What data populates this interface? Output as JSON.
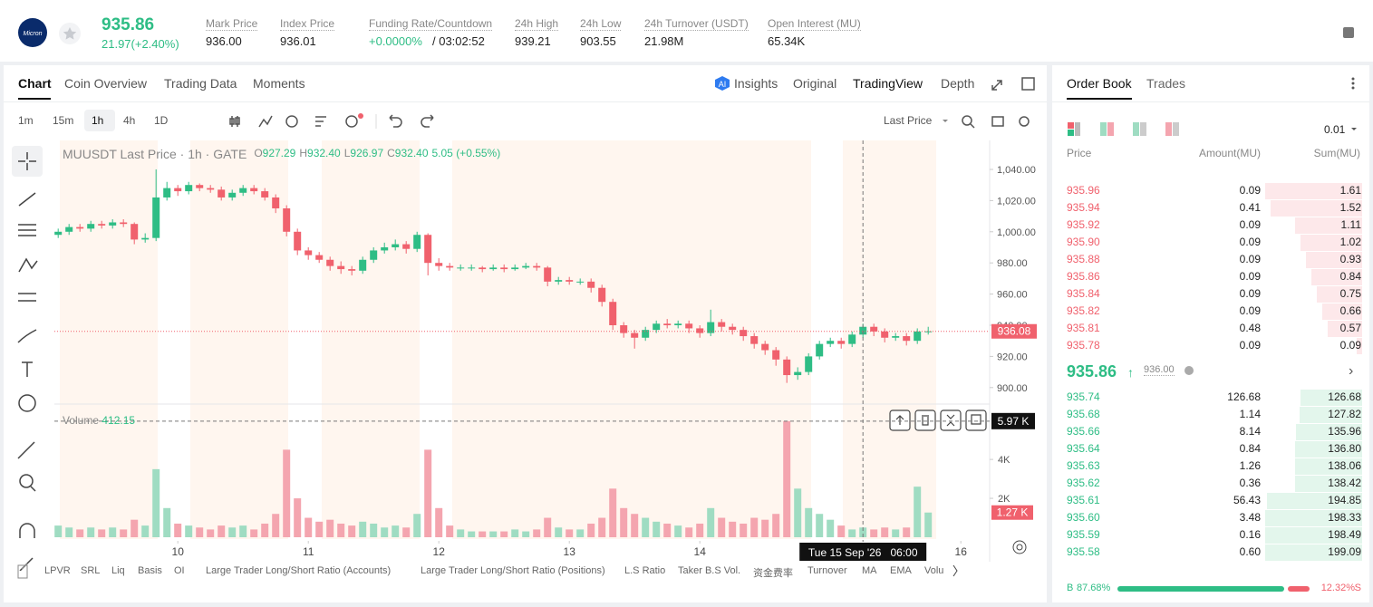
{
  "header": {
    "logo": "Micron",
    "price": "935.86",
    "change": "21.97(+2.40%)",
    "stats": [
      {
        "label": "Mark Price",
        "value": "936.00"
      },
      {
        "label": "Index Price",
        "value": "936.01"
      },
      {
        "label": "Funding Rate/Countdown",
        "value": "+0.0000%",
        "extra": "/ 03:02:52"
      },
      {
        "label": "24h High",
        "value": "939.21"
      },
      {
        "label": "24h Low",
        "value": "903.55"
      },
      {
        "label": "24h Turnover (USDT)",
        "value": "21.98M"
      },
      {
        "label": "Open Interest (MU)",
        "value": "65.34K"
      }
    ]
  },
  "chart_tabs": [
    "Chart",
    "Coin Overview",
    "Trading Data",
    "Moments"
  ],
  "view_tabs": [
    "Insights",
    "Original",
    "TradingView",
    "Depth"
  ],
  "intervals": [
    "1m",
    "15m",
    "1h",
    "4h",
    "1D"
  ],
  "price_type": "Last Price",
  "indicators": [
    "LPVR",
    "SRL",
    "Liq",
    "Basis",
    "OI",
    "Large Trader Long/Short Ratio (Accounts)",
    "Large Trader Long/Short Ratio (Positions)",
    "L.S Ratio",
    "Taker B.S Vol.",
    "资金费率",
    "Turnover",
    "MA",
    "EMA",
    "Volu"
  ],
  "chart_data": {
    "type": "candlestick",
    "title": "MUUSDT Last Price · 1h · GATE",
    "ohlc_legend": [
      {
        "key": "O",
        "value": "927.29"
      },
      {
        "key": "H",
        "value": "932.40"
      },
      {
        "key": "L",
        "value": "926.97"
      },
      {
        "key": "C",
        "value": "932.40"
      }
    ],
    "legend_change": "5.05 (+0.55%)",
    "volume_title": "Volume",
    "volume_ma": "412.15",
    "up_color": "#2ebd85",
    "down_color": "#f0616d",
    "volume_up_color": "#9fdcc2",
    "volume_down_color": "#f4a5af",
    "x": [
      -22,
      -20,
      -18,
      -16,
      -14,
      -12,
      -10,
      -8,
      -6,
      -4,
      -2,
      0,
      2,
      4,
      6,
      8,
      10,
      12,
      14,
      16,
      18,
      20,
      22,
      24,
      26,
      28,
      30,
      32,
      34,
      36,
      38,
      40,
      42,
      44,
      46,
      48,
      50,
      52,
      54,
      56,
      58,
      60,
      62,
      64,
      66,
      68,
      70,
      72,
      74,
      76,
      78,
      80,
      82,
      84,
      86,
      88,
      90,
      92,
      94,
      96,
      98,
      100,
      102,
      104,
      106,
      108,
      110,
      112,
      114,
      116,
      118,
      120,
      122,
      124,
      126,
      128,
      130,
      132,
      134,
      136,
      138
    ],
    "open": [
      998,
      1000,
      1003,
      1002,
      1005,
      1004,
      1006,
      1005,
      995,
      996,
      1022,
      1028,
      1026,
      1030,
      1028,
      1027,
      1022,
      1025,
      1028,
      1026,
      1022,
      1015,
      1000,
      988,
      985,
      982,
      978,
      976,
      975,
      982,
      988,
      990,
      992,
      989,
      998,
      980,
      978,
      977,
      977,
      977,
      976,
      977,
      976,
      977,
      978,
      977,
      968,
      969,
      968,
      968,
      964,
      955,
      940,
      935,
      932,
      937,
      941,
      940,
      941,
      938,
      935,
      942,
      939,
      937,
      933,
      928,
      924,
      918,
      908,
      910,
      920,
      928,
      930,
      928,
      934,
      939,
      936,
      932,
      933,
      930,
      936
    ],
    "high": [
      1002,
      1005,
      1005,
      1007,
      1007,
      1008,
      1008,
      1006,
      999,
      1040,
      1032,
      1030,
      1032,
      1031,
      1030,
      1029,
      1027,
      1030,
      1030,
      1028,
      1024,
      1017,
      1002,
      990,
      987,
      984,
      981,
      978,
      984,
      990,
      993,
      995,
      994,
      1000,
      999,
      983,
      980,
      979,
      979,
      978,
      979,
      979,
      979,
      980,
      980,
      978,
      971,
      971,
      970,
      970,
      966,
      957,
      942,
      937,
      939,
      943,
      944,
      943,
      943,
      940,
      950,
      944,
      941,
      939,
      935,
      930,
      926,
      920,
      913,
      922,
      930,
      932,
      932,
      936,
      941,
      941,
      938,
      935,
      935,
      938,
      939
    ],
    "low": [
      996,
      998,
      1000,
      1000,
      1002,
      1002,
      1003,
      992,
      993,
      994,
      1020,
      1023,
      1024,
      1026,
      1025,
      1020,
      1020,
      1023,
      1024,
      1020,
      1012,
      997,
      985,
      982,
      980,
      975,
      973,
      972,
      973,
      980,
      986,
      988,
      986,
      987,
      972,
      975,
      975,
      975,
      975,
      974,
      975,
      974,
      975,
      976,
      975,
      965,
      966,
      966,
      966,
      961,
      952,
      937,
      932,
      925,
      930,
      935,
      938,
      938,
      935,
      932,
      933,
      936,
      934,
      930,
      925,
      921,
      914,
      903,
      905,
      908,
      918,
      926,
      925,
      926,
      932,
      933,
      929,
      930,
      927,
      928,
      934
    ],
    "close": [
      1000,
      1003,
      1002,
      1005,
      1004,
      1006,
      1005,
      995,
      996,
      1022,
      1028,
      1026,
      1030,
      1028,
      1027,
      1022,
      1025,
      1028,
      1026,
      1022,
      1015,
      1000,
      988,
      985,
      982,
      978,
      976,
      975,
      982,
      988,
      990,
      992,
      989,
      998,
      980,
      978,
      977,
      977,
      977,
      976,
      977,
      976,
      977,
      978,
      977,
      968,
      969,
      968,
      968,
      964,
      955,
      940,
      935,
      932,
      937,
      941,
      940,
      941,
      938,
      935,
      942,
      939,
      937,
      933,
      928,
      924,
      918,
      908,
      910,
      920,
      928,
      930,
      928,
      934,
      939,
      936,
      932,
      933,
      930,
      936,
      936.08
    ],
    "volume": [
      600,
      500,
      400,
      500,
      400,
      500,
      400,
      900,
      600,
      3500,
      1500,
      700,
      600,
      500,
      400,
      600,
      500,
      600,
      400,
      700,
      1200,
      4500,
      2000,
      1000,
      800,
      900,
      700,
      600,
      800,
      700,
      500,
      600,
      500,
      1200,
      4500,
      1500,
      600,
      400,
      300,
      300,
      300,
      300,
      400,
      300,
      400,
      1000,
      500,
      400,
      400,
      700,
      1000,
      2500,
      1500,
      1200,
      1000,
      800,
      700,
      600,
      500,
      700,
      1500,
      1000,
      800,
      700,
      1000,
      900,
      1200,
      5970,
      2500,
      1500,
      1200,
      900,
      600,
      400,
      500,
      400,
      500,
      400,
      500,
      2600,
      1270
    ],
    "xlim": [
      -22.7,
      149.3
    ],
    "xticks": [
      {
        "value": 0,
        "label": "10"
      },
      {
        "value": 24,
        "label": "11"
      },
      {
        "value": 48,
        "label": "12"
      },
      {
        "value": 72,
        "label": "13"
      },
      {
        "value": 96,
        "label": "14"
      },
      {
        "value": 144,
        "label": "16"
      }
    ],
    "ylim": [
      890,
      1058.6
    ],
    "yticks": [
      {
        "value": 900,
        "label": "900.00"
      },
      {
        "value": 920,
        "label": "920.00"
      },
      {
        "value": 940,
        "label": "940.00"
      },
      {
        "value": 960,
        "label": "960.00"
      },
      {
        "value": 980,
        "label": "980.00"
      },
      {
        "value": 1000,
        "label": "1,000.00"
      },
      {
        "value": 1020,
        "label": "1,020.00"
      },
      {
        "value": 1040,
        "label": "1,040.00"
      }
    ],
    "volume_ylim": [
      0,
      6800
    ],
    "volume_yticks": [
      {
        "value": 2000,
        "label": "2K"
      },
      {
        "value": 4000,
        "label": "4K"
      }
    ],
    "last_price": 936.08,
    "crosshair": {
      "x": {
        "value": 126,
        "label": "Tue 15 Sep '26   06:00"
      },
      "volume": {
        "value": 5970,
        "label": "5.97 K"
      }
    },
    "last_volume": {
      "value": 1270,
      "label": "1.27 K"
    }
  },
  "order_book": {
    "tabs": [
      "Order Book",
      "Trades"
    ],
    "tick": "0.01",
    "columns": [
      "Price",
      "Amount(MU)",
      "Sum(MU)"
    ],
    "asks": [
      {
        "price": "935.96",
        "amount": "0.09",
        "sum": 1.61
      },
      {
        "price": "935.94",
        "amount": "0.41",
        "sum": 1.52
      },
      {
        "price": "935.92",
        "amount": "0.09",
        "sum": 1.11
      },
      {
        "price": "935.90",
        "amount": "0.09",
        "sum": 1.02
      },
      {
        "price": "935.88",
        "amount": "0.09",
        "sum": 0.93
      },
      {
        "price": "935.86",
        "amount": "0.09",
        "sum": 0.84
      },
      {
        "price": "935.84",
        "amount": "0.09",
        "sum": 0.75
      },
      {
        "price": "935.82",
        "amount": "0.09",
        "sum": 0.66
      },
      {
        "price": "935.81",
        "amount": "0.48",
        "sum": 0.57
      },
      {
        "price": "935.78",
        "amount": "0.09",
        "sum": 0.09
      }
    ],
    "mid_price": "935.86",
    "mark_price": "936.00",
    "bids": [
      {
        "price": "935.74",
        "amount": "126.68",
        "sum": 126.68
      },
      {
        "price": "935.68",
        "amount": "1.14",
        "sum": 127.82
      },
      {
        "price": "935.66",
        "amount": "8.14",
        "sum": 135.96
      },
      {
        "price": "935.64",
        "amount": "0.84",
        "sum": {
          "value": 136.8,
          "label": "136.80"
        }
      },
      {
        "price": "935.63",
        "amount": "1.26",
        "sum": 138.06
      },
      {
        "price": "935.62",
        "amount": "0.36",
        "sum": 138.42
      },
      {
        "price": "935.61",
        "amount": "56.43",
        "sum": 194.85
      },
      {
        "price": "935.60",
        "amount": "3.48",
        "sum": 198.33
      },
      {
        "price": "935.59",
        "amount": "0.16",
        "sum": 198.49
      },
      {
        "price": "935.58",
        "amount": "0.60",
        "sum": 199.09
      }
    ],
    "buy_letter": "B",
    "sell_letter": "S",
    "buy": {
      "value": 87.68,
      "label": "87.68%"
    },
    "sell": {
      "value": 12.32,
      "label": "12.32%"
    }
  }
}
